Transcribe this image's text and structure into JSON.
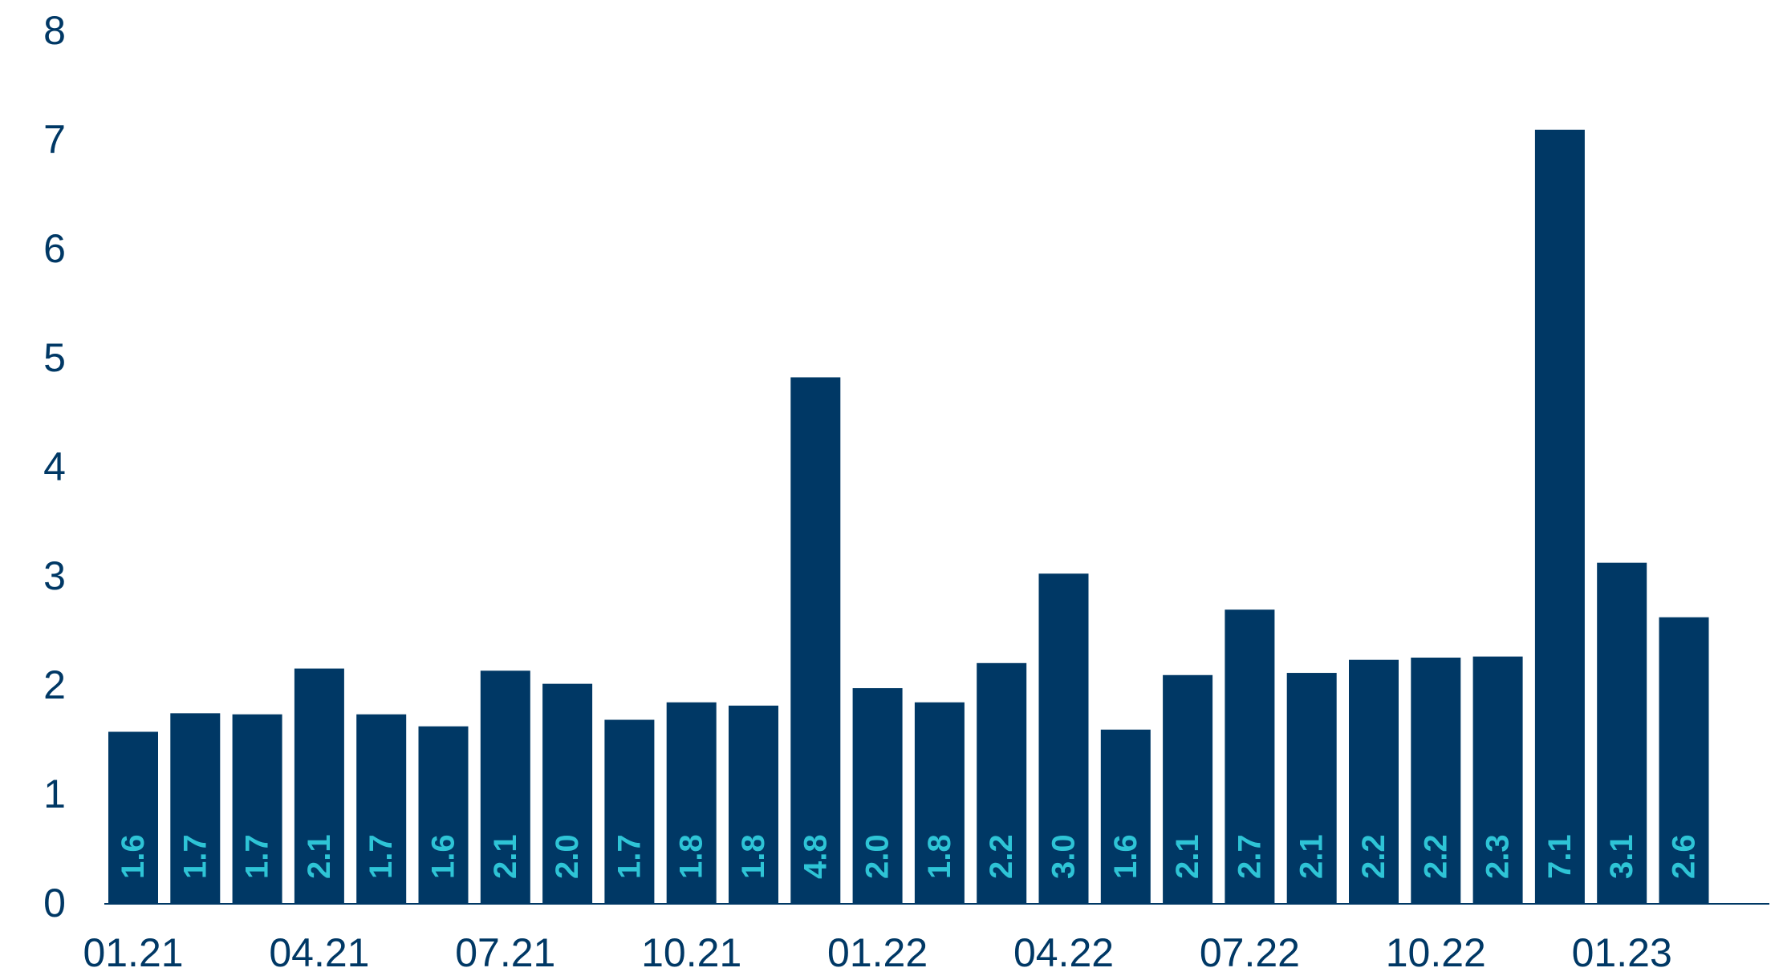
{
  "colors": {
    "bar": "#003865",
    "data_label": "#2ec4d6",
    "axis_text": "#003865",
    "axis_line": "#003865",
    "background": "#ffffff"
  },
  "chart_data": {
    "type": "bar",
    "title": "",
    "xlabel": "",
    "ylabel": "",
    "ylim": [
      0,
      8
    ],
    "yticks": [
      "0",
      "1",
      "2",
      "3",
      "4",
      "5",
      "6",
      "7",
      "8"
    ],
    "grid": false,
    "legend": "none",
    "categories": [
      "01.21",
      "02.21",
      "03.21",
      "04.21",
      "05.21",
      "06.21",
      "07.21",
      "08.21",
      "09.21",
      "10.21",
      "11.21",
      "12.21",
      "01.22",
      "02.22",
      "03.22",
      "04.22",
      "05.22",
      "06.22",
      "07.22",
      "08.22",
      "09.22",
      "10.22",
      "11.22",
      "12.22",
      "01.23",
      "02.23"
    ],
    "category_labels_shown": [
      "01.21",
      "",
      "",
      "04.21",
      "",
      "",
      "07.21",
      "",
      "",
      "10.21",
      "",
      "",
      "01.22",
      "",
      "",
      "04.22",
      "",
      "",
      "07.22",
      "",
      "",
      "10.22",
      "",
      "",
      "01.23",
      ""
    ],
    "values": [
      1.57,
      1.74,
      1.73,
      2.15,
      1.73,
      1.62,
      2.13,
      2.01,
      1.68,
      1.84,
      1.81,
      4.82,
      1.97,
      1.84,
      2.2,
      3.02,
      1.59,
      2.09,
      2.69,
      2.11,
      2.23,
      2.25,
      2.26,
      7.09,
      3.12,
      2.62
    ],
    "data_labels": [
      "1.6",
      "1.7",
      "1.7",
      "2.1",
      "1.7",
      "1.6",
      "2.1",
      "2.0",
      "1.7",
      "1.8",
      "1.8",
      "4.8",
      "2.0",
      "1.8",
      "2.2",
      "3.0",
      "1.6",
      "2.1",
      "2.7",
      "2.1",
      "2.2",
      "2.2",
      "2.3",
      "7.1",
      "3.1",
      "2.6"
    ]
  }
}
